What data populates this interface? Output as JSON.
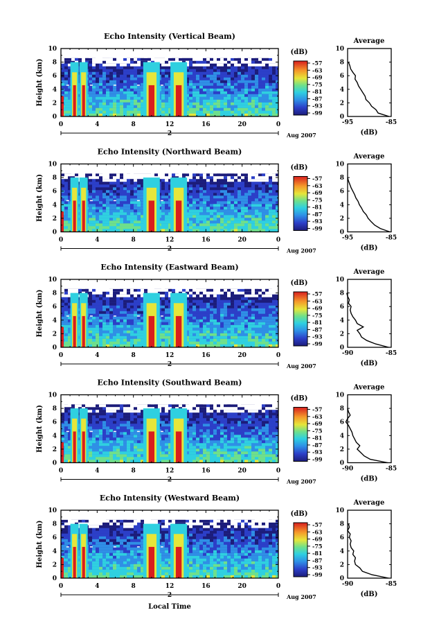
{
  "figure": {
    "xlabel": "Local Time",
    "colorbar_unit": "(dB)",
    "average_title": "Average",
    "average_xlabel": "(dB)",
    "date_label": "Aug 2007",
    "date_day": "2"
  },
  "chart_data": [
    {
      "type": "heatmap",
      "title": "Echo Intensity (Vertical Beam)",
      "ylabel": "Height (km)",
      "xlabel": "Local Time",
      "x_ticks": [
        "0",
        "4",
        "8",
        "12",
        "16",
        "20",
        "0"
      ],
      "y_ticks": [
        "0",
        "2",
        "4",
        "6",
        "8",
        "10"
      ],
      "xlim": [
        0,
        24
      ],
      "ylim": [
        0,
        10
      ],
      "colorbar_ticks": [
        "-57",
        "-63",
        "-69",
        "-75",
        "-81",
        "-87",
        "-93",
        "-99"
      ],
      "convective_bursts_hours": [
        1.5,
        2.5,
        10.0,
        13.0
      ],
      "average_profile": {
        "xlim": [
          -95,
          -85
        ],
        "x_ticks": [
          "-95",
          "-85"
        ],
        "ylim": [
          0,
          10
        ],
        "y_ticks": [
          "0",
          "2",
          "4",
          "6",
          "8",
          "10"
        ],
        "height_km": [
          0,
          0.5,
          1,
          1.5,
          2,
          2.5,
          3,
          3.5,
          4,
          4.5,
          5,
          5.5,
          6,
          6.5,
          7,
          7.5,
          8
        ],
        "echo_db": [
          -85.5,
          -88,
          -88.5,
          -89.5,
          -90,
          -90.8,
          -91,
          -91.5,
          -92,
          -92.5,
          -92.8,
          -93.3,
          -93.2,
          -93.8,
          -94.3,
          -94.5,
          -94.8
        ]
      }
    },
    {
      "type": "heatmap",
      "title": "Echo Intensity (Northward Beam)",
      "ylabel": "Height (km)",
      "xlabel": "Local Time",
      "x_ticks": [
        "0",
        "4",
        "8",
        "12",
        "16",
        "20",
        "0"
      ],
      "y_ticks": [
        "0",
        "2",
        "4",
        "6",
        "8",
        "10"
      ],
      "xlim": [
        0,
        24
      ],
      "ylim": [
        0,
        10
      ],
      "colorbar_ticks": [
        "-57",
        "-63",
        "-69",
        "-75",
        "-81",
        "-87",
        "-93",
        "-99"
      ],
      "convective_bursts_hours": [
        1.5,
        2.5,
        10.0,
        13.0
      ],
      "average_profile": {
        "xlim": [
          -95,
          -85
        ],
        "x_ticks": [
          "-95",
          "-85"
        ],
        "ylim": [
          0,
          10
        ],
        "y_ticks": [
          "0",
          "2",
          "4",
          "6",
          "8",
          "10"
        ],
        "height_km": [
          0,
          0.5,
          1,
          1.5,
          2,
          2.5,
          3,
          3.5,
          4,
          4.5,
          5,
          5.5,
          6,
          6.5,
          7,
          7.5,
          8
        ],
        "echo_db": [
          -85.3,
          -87.5,
          -88.8,
          -89.6,
          -90.3,
          -90.7,
          -91.4,
          -91.8,
          -92.3,
          -92.6,
          -93.1,
          -93.4,
          -93.8,
          -94.2,
          -94.5,
          -94.8,
          -95
        ]
      }
    },
    {
      "type": "heatmap",
      "title": "Echo Intensity (Eastward Beam)",
      "ylabel": "Height (km)",
      "xlabel": "Local Time",
      "x_ticks": [
        "0",
        "4",
        "8",
        "12",
        "16",
        "20",
        "0"
      ],
      "y_ticks": [
        "0",
        "2",
        "4",
        "6",
        "8",
        "10"
      ],
      "xlim": [
        0,
        24
      ],
      "ylim": [
        0,
        10
      ],
      "colorbar_ticks": [
        "-57",
        "-63",
        "-69",
        "-75",
        "-81",
        "-87",
        "-93",
        "-99"
      ],
      "convective_bursts_hours": [
        1.5,
        2.5,
        10.0,
        13.0
      ],
      "average_profile": {
        "xlim": [
          -90,
          -85
        ],
        "x_ticks": [
          "-90",
          "-85"
        ],
        "ylim": [
          0,
          10
        ],
        "y_ticks": [
          "0",
          "2",
          "4",
          "6",
          "8",
          "10"
        ],
        "height_km": [
          0,
          0.5,
          1,
          1.5,
          2,
          2.5,
          3,
          3.5,
          4,
          4.5,
          5,
          5.5,
          6,
          6.5,
          7,
          7.5,
          8
        ],
        "echo_db": [
          -85.3,
          -86.8,
          -87.8,
          -88.4,
          -88.6,
          -88.9,
          -88.2,
          -88.9,
          -89.1,
          -89.4,
          -89.6,
          -89.7,
          -89.6,
          -89.9,
          -89.8,
          -90,
          -90.1
        ]
      }
    },
    {
      "type": "heatmap",
      "title": "Echo Intensity (Southward Beam)",
      "ylabel": "Height (km)",
      "xlabel": "Local Time",
      "x_ticks": [
        "0",
        "4",
        "8",
        "12",
        "16",
        "20",
        "0"
      ],
      "y_ticks": [
        "0",
        "2",
        "4",
        "6",
        "8",
        "10"
      ],
      "xlim": [
        0,
        24
      ],
      "ylim": [
        0,
        10
      ],
      "colorbar_ticks": [
        "-57",
        "-63",
        "-69",
        "-75",
        "-81",
        "-87",
        "-93",
        "-99"
      ],
      "convective_bursts_hours": [
        1.5,
        2.5,
        10.0,
        13.0
      ],
      "average_profile": {
        "xlim": [
          -90,
          -85
        ],
        "x_ticks": [
          "-90",
          "-85"
        ],
        "ylim": [
          0,
          10
        ],
        "y_ticks": [
          "0",
          "2",
          "4",
          "6",
          "8",
          "10"
        ],
        "height_km": [
          0,
          0.5,
          1,
          1.5,
          2,
          2.5,
          3,
          3.5,
          4,
          4.5,
          5,
          5.5,
          6,
          6.5,
          7,
          7.5,
          8
        ],
        "echo_db": [
          -85.4,
          -87.4,
          -88.1,
          -88.5,
          -88.9,
          -88.6,
          -89,
          -89.2,
          -89.4,
          -89.5,
          -89.7,
          -89.9,
          -90.2,
          -90,
          -89.7,
          -89.9,
          -90
        ]
      }
    },
    {
      "type": "heatmap",
      "title": "Echo Intensity (Westward Beam)",
      "ylabel": "Height (km)",
      "xlabel": "Local Time",
      "x_ticks": [
        "0",
        "4",
        "8",
        "12",
        "16",
        "20",
        "0"
      ],
      "y_ticks": [
        "0",
        "2",
        "4",
        "6",
        "8",
        "10"
      ],
      "xlim": [
        0,
        24
      ],
      "ylim": [
        0,
        10
      ],
      "colorbar_ticks": [
        "-57",
        "-63",
        "-69",
        "-75",
        "-81",
        "-87",
        "-93",
        "-99"
      ],
      "convective_bursts_hours": [
        1.5,
        2.5,
        10.0,
        13.0
      ],
      "average_profile": {
        "xlim": [
          -90,
          -85
        ],
        "x_ticks": [
          "-90",
          "-85"
        ],
        "ylim": [
          0,
          10
        ],
        "y_ticks": [
          "0",
          "2",
          "4",
          "6",
          "8",
          "10"
        ],
        "height_km": [
          0,
          0.5,
          1,
          1.5,
          2,
          2.5,
          3,
          3.5,
          4,
          4.5,
          5,
          5.5,
          6,
          6.5,
          7,
          7.5,
          8
        ],
        "echo_db": [
          -85.3,
          -87.2,
          -88.3,
          -88.6,
          -89.1,
          -89.2,
          -89.1,
          -89.4,
          -89.3,
          -89.6,
          -89.7,
          -89.6,
          -89.8,
          -89.7,
          -90,
          -89.8,
          -89.9
        ]
      }
    }
  ]
}
